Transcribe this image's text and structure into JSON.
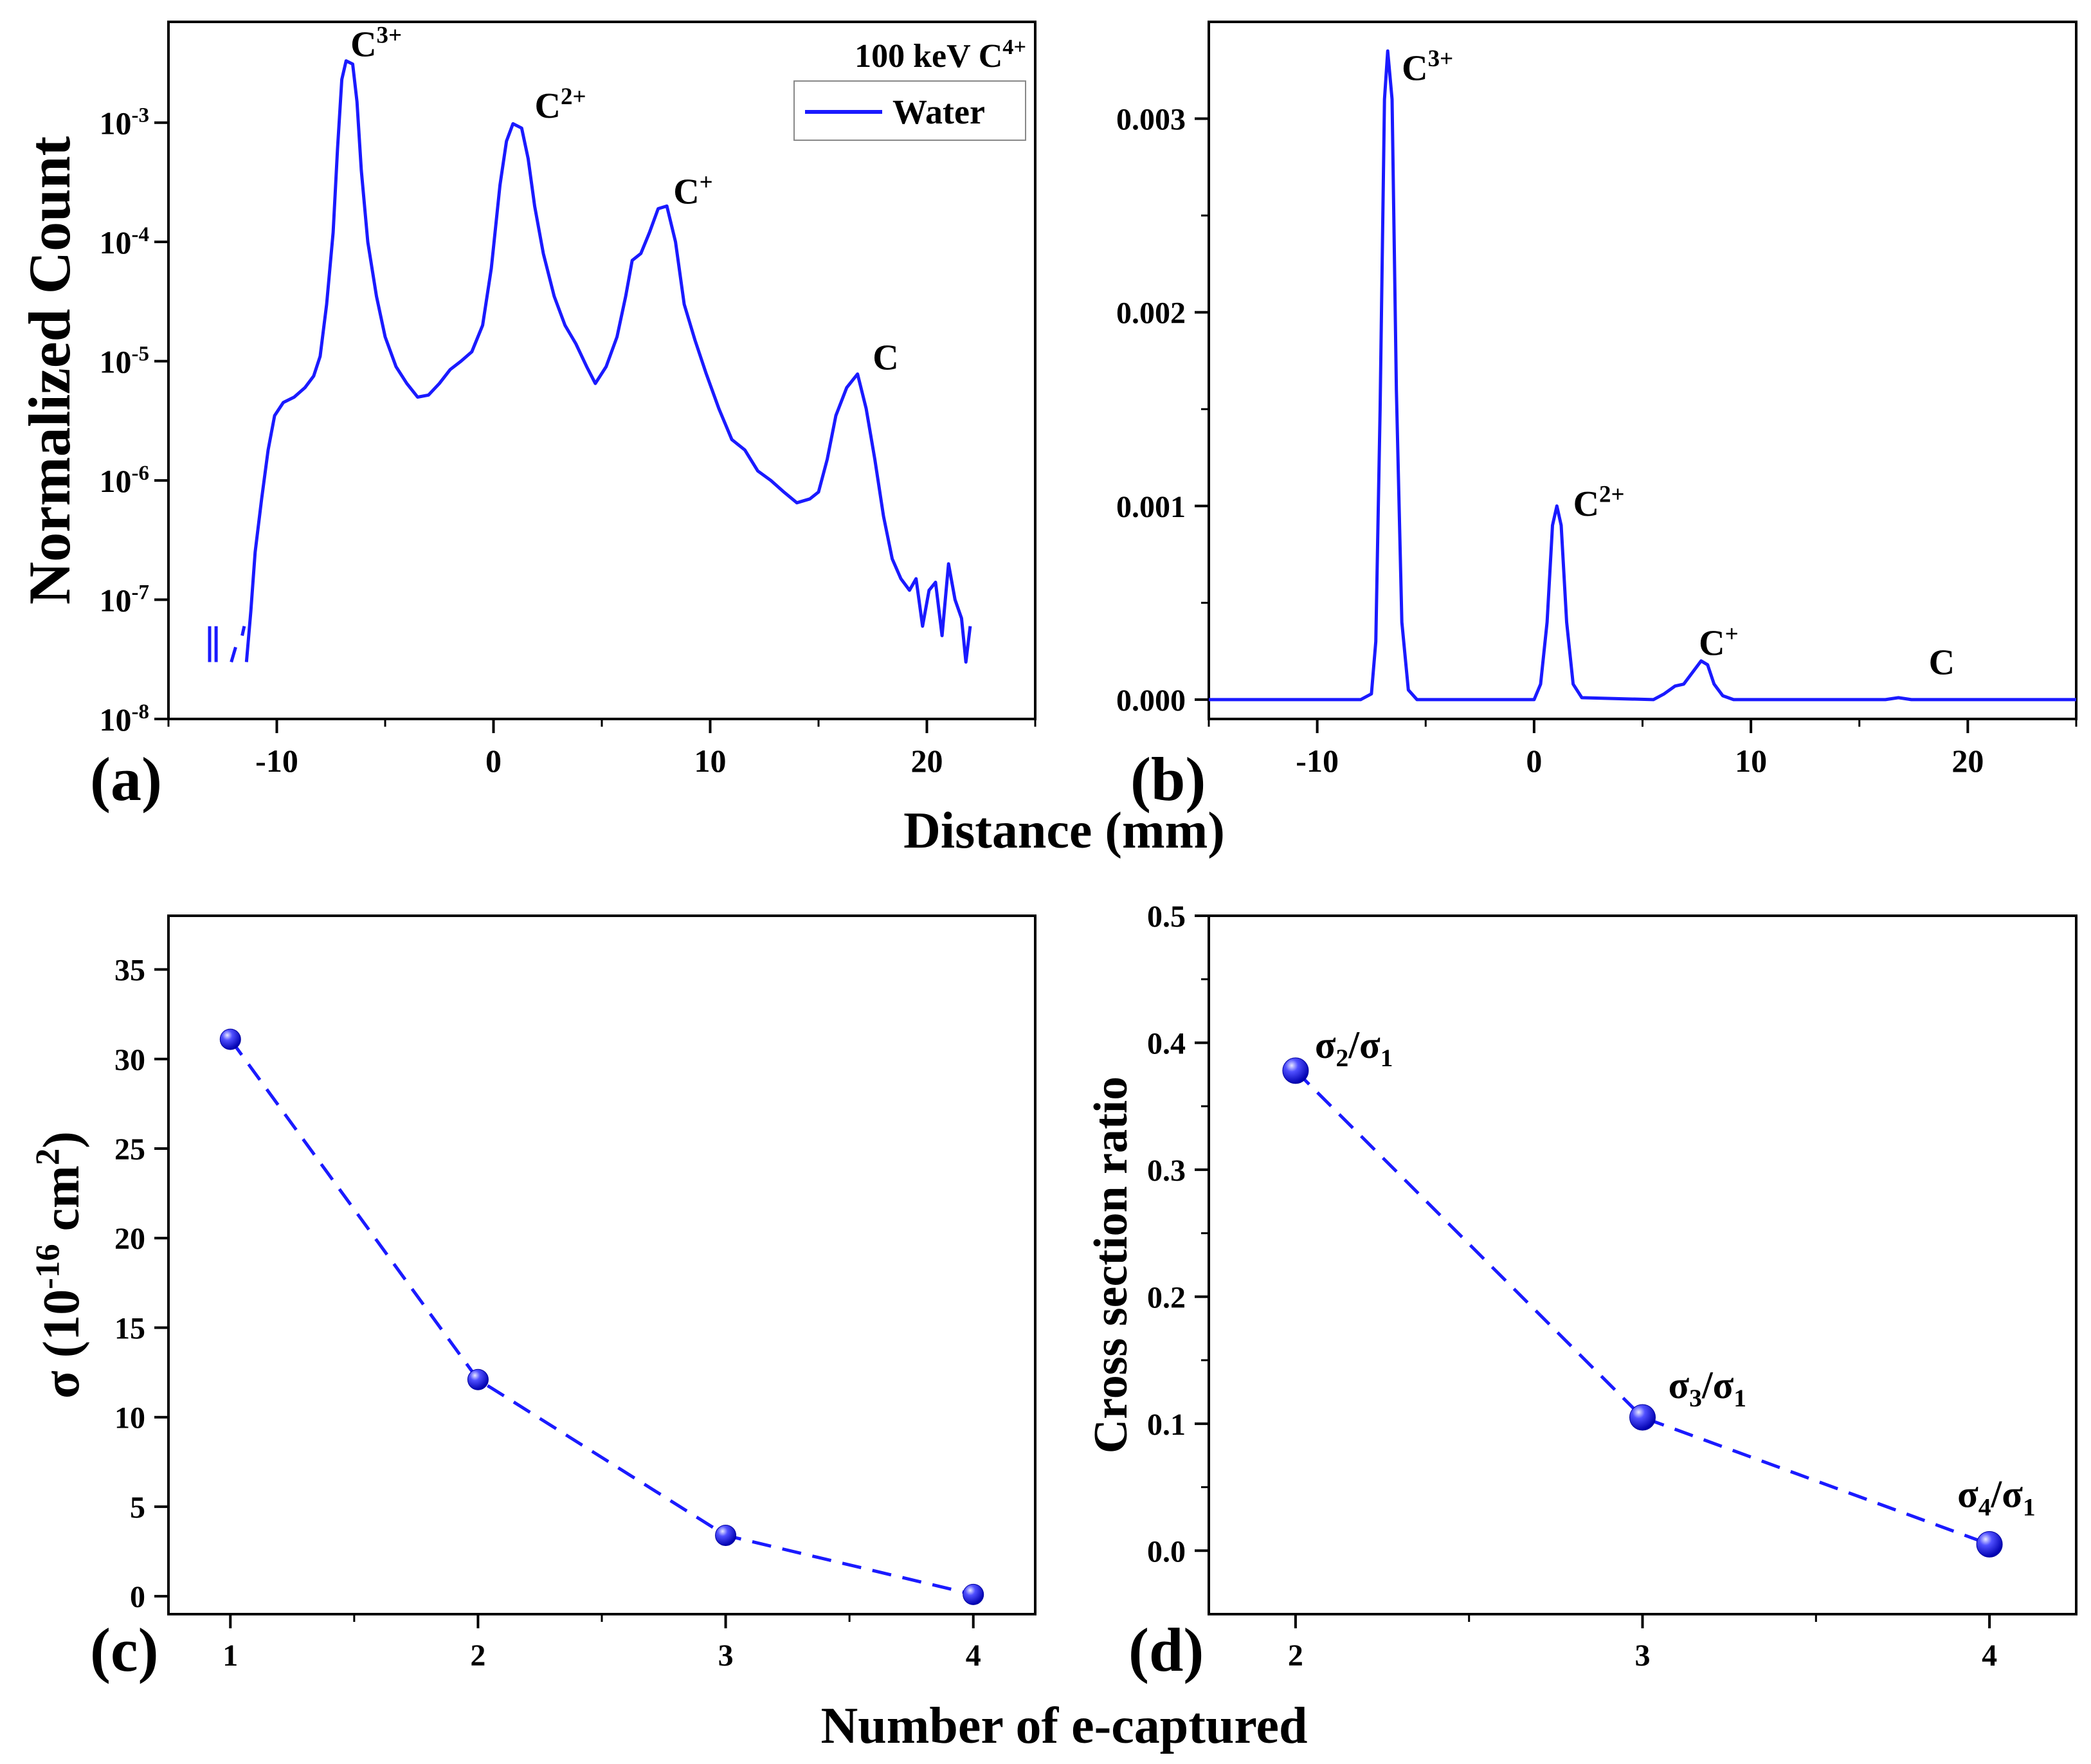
{
  "figure": {
    "xlabel_top": "Distance (mm)",
    "xlabel_bottom": "Number of e-captured",
    "line_color": "#1a1aff",
    "marker_color": "#1a1aee"
  },
  "chart_data": [
    {
      "panel": "(a)",
      "type": "line",
      "yscale": "log",
      "xlim": [
        -15,
        25
      ],
      "ylim": [
        1e-08,
        0.007
      ],
      "xticks": [
        -10,
        0,
        10,
        20
      ],
      "ytick_labels": [
        {
          "base": "10",
          "exp": "-8",
          "value": 1e-08
        },
        {
          "base": "10",
          "exp": "-7",
          "value": 1e-07
        },
        {
          "base": "10",
          "exp": "-6",
          "value": 1e-06
        },
        {
          "base": "10",
          "exp": "-5",
          "value": 1e-05
        },
        {
          "base": "10",
          "exp": "-4",
          "value": 0.0001
        },
        {
          "base": "10",
          "exp": "-3",
          "value": 0.001
        }
      ],
      "ylabel": "Normalized Count",
      "legend": {
        "title_main": "100 keV C",
        "title_sup": "4+",
        "entry": "Water",
        "position": "top-right"
      },
      "series": [
        {
          "name": "Water",
          "points": [
            [
              -11.4,
              3e-08
            ],
            [
              -11.2,
              8e-08
            ],
            [
              -11.0,
              2.5e-07
            ],
            [
              -10.7,
              7e-07
            ],
            [
              -10.4,
              1.8e-06
            ],
            [
              -10.1,
              3.5e-06
            ],
            [
              -9.7,
              4.5e-06
            ],
            [
              -9.2,
              5e-06
            ],
            [
              -8.7,
              6e-06
            ],
            [
              -8.3,
              7.5e-06
            ],
            [
              -8.0,
              1.1e-05
            ],
            [
              -7.7,
              3e-05
            ],
            [
              -7.4,
              0.00012
            ],
            [
              -7.2,
              0.0006
            ],
            [
              -7.0,
              0.0023
            ],
            [
              -6.8,
              0.0033
            ],
            [
              -6.5,
              0.0031
            ],
            [
              -6.3,
              0.0015
            ],
            [
              -6.1,
              0.0004
            ],
            [
              -5.8,
              0.0001
            ],
            [
              -5.4,
              3.5e-05
            ],
            [
              -5.0,
              1.6e-05
            ],
            [
              -4.5,
              9e-06
            ],
            [
              -4.0,
              6.5e-06
            ],
            [
              -3.5,
              5e-06
            ],
            [
              -3.0,
              5.2e-06
            ],
            [
              -2.5,
              6.5e-06
            ],
            [
              -2.0,
              8.5e-06
            ],
            [
              -1.5,
              1e-05
            ],
            [
              -1.0,
              1.2e-05
            ],
            [
              -0.5,
              2e-05
            ],
            [
              -0.1,
              6e-05
            ],
            [
              0.3,
              0.0003
            ],
            [
              0.6,
              0.0007
            ],
            [
              0.9,
              0.00098
            ],
            [
              1.3,
              0.0009
            ],
            [
              1.6,
              0.0005
            ],
            [
              1.9,
              0.0002
            ],
            [
              2.3,
              8e-05
            ],
            [
              2.8,
              3.5e-05
            ],
            [
              3.3,
              2e-05
            ],
            [
              3.8,
              1.4e-05
            ],
            [
              4.3,
              9e-06
            ],
            [
              4.7,
              6.5e-06
            ],
            [
              5.2,
              9e-06
            ],
            [
              5.7,
              1.6e-05
            ],
            [
              6.1,
              3.5e-05
            ],
            [
              6.4,
              7e-05
            ],
            [
              6.8,
              8e-05
            ],
            [
              7.2,
              0.00012
            ],
            [
              7.6,
              0.00019
            ],
            [
              8.0,
              0.0002
            ],
            [
              8.4,
              0.0001
            ],
            [
              8.8,
              3e-05
            ],
            [
              9.3,
              1.5e-05
            ],
            [
              9.8,
              8e-06
            ],
            [
              10.4,
              4e-06
            ],
            [
              11.0,
              2.2e-06
            ],
            [
              11.6,
              1.8e-06
            ],
            [
              12.2,
              1.2e-06
            ],
            [
              12.8,
              1e-06
            ],
            [
              13.4,
              8e-07
            ],
            [
              14.0,
              6.5e-07
            ],
            [
              14.6,
              7e-07
            ],
            [
              15.0,
              8e-07
            ],
            [
              15.4,
              1.5e-06
            ],
            [
              15.8,
              3.5e-06
            ],
            [
              16.3,
              6e-06
            ],
            [
              16.8,
              7.8e-06
            ],
            [
              17.2,
              4e-06
            ],
            [
              17.6,
              1.5e-06
            ],
            [
              18.0,
              5e-07
            ],
            [
              18.4,
              2.2e-07
            ],
            [
              18.8,
              1.5e-07
            ],
            [
              19.2,
              1.2e-07
            ],
            [
              19.5,
              1.5e-07
            ],
            [
              19.8,
              6e-08
            ],
            [
              20.1,
              1.2e-07
            ],
            [
              20.4,
              1.4e-07
            ],
            [
              20.7,
              5e-08
            ],
            [
              21.0,
              2e-07
            ],
            [
              21.3,
              1e-07
            ],
            [
              21.6,
              7e-08
            ],
            [
              21.8,
              3e-08
            ],
            [
              22.0,
              6e-08
            ]
          ],
          "fragments": [
            [
              [
                -13.1,
                3e-08
              ],
              [
                -13.1,
                6e-08
              ]
            ],
            [
              [
                -12.8,
                3e-08
              ],
              [
                -12.8,
                6e-08
              ]
            ],
            [
              [
                -12.1,
                3e-08
              ],
              [
                -11.9,
                4e-08
              ]
            ],
            [
              [
                -11.6,
                5e-08
              ],
              [
                -11.5,
                6e-08
              ]
            ]
          ]
        }
      ],
      "annotations": [
        {
          "base": "C",
          "sup": "3+",
          "x": -6.6,
          "y": 0.0036
        },
        {
          "base": "C",
          "sup": "2+",
          "x": 1.9,
          "y": 0.0011
        },
        {
          "base": "C",
          "sup": "+",
          "x": 8.3,
          "y": 0.00021
        },
        {
          "base": "C",
          "sup": "",
          "x": 17.5,
          "y": 8.5e-06
        }
      ]
    },
    {
      "panel": "(b)",
      "type": "line",
      "yscale": "linear",
      "xlim": [
        -15,
        25
      ],
      "ylim": [
        -0.0001,
        0.0035
      ],
      "xticks": [
        -10,
        0,
        10,
        20
      ],
      "yticks": [
        0.0,
        0.001,
        0.002,
        0.003
      ],
      "ytick_labels": [
        "0.000",
        "0.001",
        "0.002",
        "0.003"
      ],
      "series": [
        {
          "name": "Water",
          "points": [
            [
              -15.0,
              0.0
            ],
            [
              -8.0,
              0.0
            ],
            [
              -7.5,
              3e-05
            ],
            [
              -7.3,
              0.0003
            ],
            [
              -7.1,
              0.0015
            ],
            [
              -6.9,
              0.0031
            ],
            [
              -6.75,
              0.00335
            ],
            [
              -6.55,
              0.0031
            ],
            [
              -6.35,
              0.0016
            ],
            [
              -6.1,
              0.0004
            ],
            [
              -5.8,
              5e-05
            ],
            [
              -5.4,
              0.0
            ],
            [
              0.0,
              0.0
            ],
            [
              0.3,
              8e-05
            ],
            [
              0.6,
              0.0004
            ],
            [
              0.85,
              0.0009
            ],
            [
              1.05,
              0.001
            ],
            [
              1.25,
              0.0009
            ],
            [
              1.5,
              0.0004
            ],
            [
              1.8,
              8e-05
            ],
            [
              2.2,
              1e-05
            ],
            [
              5.5,
              0.0
            ],
            [
              6.0,
              3e-05
            ],
            [
              6.5,
              7e-05
            ],
            [
              6.9,
              8e-05
            ],
            [
              7.3,
              0.00014
            ],
            [
              7.7,
              0.0002
            ],
            [
              8.0,
              0.00018
            ],
            [
              8.3,
              8e-05
            ],
            [
              8.7,
              2e-05
            ],
            [
              9.2,
              0.0
            ],
            [
              16.2,
              0.0
            ],
            [
              16.8,
              1e-05
            ],
            [
              17.4,
              0.0
            ],
            [
              25.0,
              0.0
            ]
          ]
        }
      ],
      "annotations": [
        {
          "base": "C",
          "sup": "3+",
          "x": -6.1,
          "y": 0.0032
        },
        {
          "base": "C",
          "sup": "2+",
          "x": 1.8,
          "y": 0.00095
        },
        {
          "base": "C",
          "sup": "+",
          "x": 7.6,
          "y": 0.00023
        },
        {
          "base": "C",
          "sup": "",
          "x": 18.2,
          "y": 0.00013
        }
      ]
    },
    {
      "panel": "(c)",
      "type": "scatter",
      "line_style": "dashed",
      "xlim": [
        0.75,
        4.25
      ],
      "ylim": [
        -1,
        38
      ],
      "xticks": [
        1,
        2,
        3,
        4
      ],
      "yticks": [
        0,
        5,
        10,
        15,
        20,
        25,
        30,
        35
      ],
      "ylabel": {
        "prefix": "σ (10",
        "exp1": "-16",
        "mid": " cm",
        "exp2": "2",
        "suffix": ")"
      },
      "series": [
        {
          "name": "σ",
          "x": [
            1,
            2,
            3,
            4
          ],
          "y": [
            31.1,
            12.1,
            3.4,
            0.1
          ]
        }
      ]
    },
    {
      "panel": "(d)",
      "type": "scatter",
      "line_style": "dashed",
      "xlim": [
        1.75,
        4.25
      ],
      "ylim": [
        -0.05,
        0.5
      ],
      "xticks": [
        2,
        3,
        4
      ],
      "yticks": [
        0.0,
        0.1,
        0.2,
        0.3,
        0.4,
        0.5
      ],
      "ytick_labels": [
        "0.0",
        "0.1",
        "0.2",
        "0.3",
        "0.4",
        "0.5"
      ],
      "ylabel": "Cross section ratio",
      "series": [
        {
          "name": "ratio",
          "x": [
            2,
            3,
            4
          ],
          "y": [
            0.378,
            0.105,
            0.005
          ]
        }
      ],
      "annotations": [
        {
          "num": "2",
          "den": "1",
          "x": 2.0,
          "y": 0.378
        },
        {
          "num": "3",
          "den": "1",
          "x": 3.0,
          "y": 0.105
        },
        {
          "num": "4",
          "den": "1",
          "x": 4.0,
          "y": 0.005
        }
      ]
    }
  ]
}
